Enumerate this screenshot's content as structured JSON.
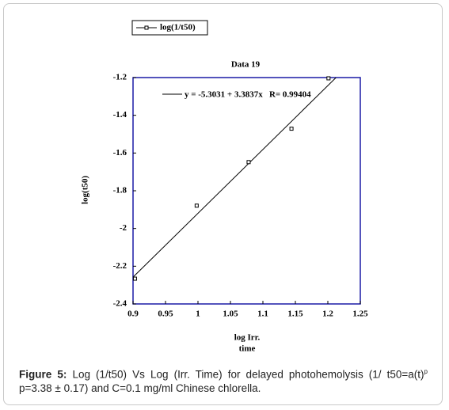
{
  "chart_data": {
    "type": "scatter",
    "title": "Data 19",
    "series": [
      {
        "name": "log(1/t50)",
        "color": "#000000",
        "x": [
          0.903,
          0.998,
          1.078,
          1.144,
          1.201
        ],
        "values": [
          -2.266,
          -1.879,
          -1.648,
          -1.471,
          -1.204
        ]
      }
    ],
    "trendline": {
      "x": [
        0.9,
        1.2126
      ],
      "values": [
        -2.258,
        -1.2
      ]
    },
    "annotation": "y = -5.3031 + 3.3837x   R= 0.99404",
    "xlabel": [
      "log Irr.",
      "time"
    ],
    "ylabel": "log(t50)",
    "xlim": [
      0.9,
      1.25
    ],
    "xticks": [
      0.9,
      0.95,
      1,
      1.05,
      1.1,
      1.15,
      1.2,
      1.25
    ],
    "ylim": [
      -2.4,
      -1.2
    ],
    "yticks": [
      -1.2,
      -1.4,
      -1.6,
      -1.8,
      -2,
      -2.2,
      -2.4
    ],
    "frame_color": "#1a1aa6"
  },
  "caption": {
    "label": "Figure 5:",
    "text": "Log (1/t50) Vs Log (Irr. Time) for delayed photohemolysis (1/ t50=a(t)",
    "sup": "p",
    "rest": " p=3.38 ± 0.17) and C=0.1 mg/ml Chinese chlorella."
  }
}
